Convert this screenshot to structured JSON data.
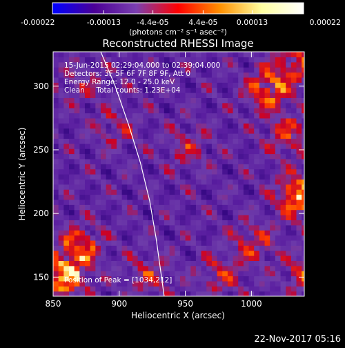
{
  "chart_data": {
    "type": "heatmap",
    "title": "Reconstructed RHESSI Image",
    "xlabel": "Heliocentric X (arcsec)",
    "ylabel": "Heliocentric Y (arcsec)",
    "xlim": [
      850,
      1040
    ],
    "ylim": [
      135,
      327
    ],
    "x_ticks": [
      850,
      900,
      950,
      1000
    ],
    "y_ticks": [
      150,
      200,
      250,
      300
    ],
    "x_tick_labels": [
      "850",
      "900",
      "950",
      "1000"
    ],
    "y_tick_labels": [
      "150",
      "200",
      "250",
      "300"
    ],
    "colorbar": {
      "range": [
        -0.00022,
        0.00022
      ],
      "tick_labels": [
        "-0.00022",
        "-0.00013",
        "-4.4e-05",
        "4.4e-05",
        "0.00013",
        "0.00022"
      ],
      "unit_label": "(photons cm⁻² s⁻¹ asec⁻²)",
      "colors": [
        "#0000ff",
        "#4b0096",
        "#7a3fb0",
        "#ff0000",
        "#ff9000",
        "#ffffa0",
        "#ffffff"
      ]
    },
    "annotations": [
      "15-Jun-2015 02:29:04.000 to 02:39:04.000",
      "Detectors: 3F 5F 6F 7F 8F 9F, Att 0",
      "Energy Range: 12.0 - 25.0 keV",
      "Clean     Total counts: 1.23E+04"
    ],
    "peak_label": "Position of Peak = [1034,212]",
    "peak": {
      "x": 1034,
      "y": 212
    },
    "limb_curve": [
      {
        "x": 886,
        "y": 327
      },
      {
        "x": 897,
        "y": 300
      },
      {
        "x": 907,
        "y": 270
      },
      {
        "x": 916,
        "y": 240
      },
      {
        "x": 923,
        "y": 210
      },
      {
        "x": 928,
        "y": 180
      },
      {
        "x": 932,
        "y": 150
      },
      {
        "x": 934,
        "y": 135
      }
    ],
    "hotspots": [
      {
        "x": 1034,
        "y": 212,
        "amp": 1.0
      },
      {
        "x": 856,
        "y": 148,
        "amp": 0.95
      },
      {
        "x": 868,
        "y": 172,
        "amp": 0.7
      },
      {
        "x": 1010,
        "y": 295,
        "amp": 0.75
      },
      {
        "x": 1030,
        "y": 315,
        "amp": 0.6
      },
      {
        "x": 1025,
        "y": 260,
        "amp": 0.55
      },
      {
        "x": 1000,
        "y": 175,
        "amp": 0.5
      },
      {
        "x": 975,
        "y": 150,
        "amp": 0.45
      },
      {
        "x": 1040,
        "y": 150,
        "amp": 0.6
      },
      {
        "x": 920,
        "y": 150,
        "amp": 0.45
      },
      {
        "x": 895,
        "y": 265,
        "amp": 0.35
      },
      {
        "x": 950,
        "y": 250,
        "amp": 0.4
      },
      {
        "x": 870,
        "y": 300,
        "amp": 0.3
      }
    ]
  },
  "footer": {
    "date": "22-Nov-2017 05:16"
  }
}
